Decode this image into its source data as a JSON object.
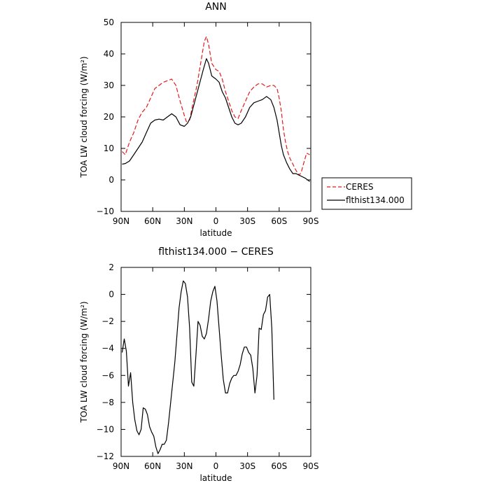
{
  "chart_data": [
    {
      "type": "line",
      "title": "ANN",
      "xlabel": "latitude",
      "ylabel": "TOA LW cloud forcing (W/m²)",
      "xlim": [
        -90,
        90
      ],
      "ylim": [
        -10,
        50
      ],
      "x_ticks": [
        -90,
        -60,
        -30,
        0,
        30,
        60,
        90
      ],
      "x_tick_labels": [
        "90N",
        "60N",
        "30N",
        "0",
        "30S",
        "60S",
        "90S"
      ],
      "y_ticks": [
        -10,
        0,
        10,
        20,
        30,
        40,
        50
      ],
      "y_tick_labels": [
        "−10",
        "0",
        "10",
        "20",
        "30",
        "40",
        "50"
      ],
      "grid": false,
      "legend_position": "right",
      "series": [
        {
          "name": "CERES",
          "color": "#e41a1c",
          "dash": "dashed",
          "points": [
            [
              -89,
              9
            ],
            [
              -86,
              8
            ],
            [
              -82,
              12
            ],
            [
              -78,
              15
            ],
            [
              -74,
              19
            ],
            [
              -70,
              21.5
            ],
            [
              -66,
              23
            ],
            [
              -62,
              26
            ],
            [
              -58,
              29
            ],
            [
              -54,
              30
            ],
            [
              -50,
              31
            ],
            [
              -46,
              31.5
            ],
            [
              -42,
              32
            ],
            [
              -38,
              30
            ],
            [
              -34,
              25
            ],
            [
              -30,
              20.5
            ],
            [
              -28,
              18.5
            ],
            [
              -25,
              19
            ],
            [
              -22,
              24
            ],
            [
              -18,
              30
            ],
            [
              -14,
              38
            ],
            [
              -11,
              44
            ],
            [
              -9,
              45.5
            ],
            [
              -7,
              43
            ],
            [
              -4,
              37
            ],
            [
              0,
              35
            ],
            [
              3,
              34.5
            ],
            [
              6,
              32
            ],
            [
              9,
              28
            ],
            [
              12,
              25
            ],
            [
              15,
              22
            ],
            [
              18,
              20
            ],
            [
              21,
              19.5
            ],
            [
              24,
              22
            ],
            [
              28,
              25
            ],
            [
              32,
              28
            ],
            [
              36,
              29.5
            ],
            [
              40,
              30.5
            ],
            [
              44,
              30.5
            ],
            [
              48,
              29.5
            ],
            [
              52,
              30
            ],
            [
              55,
              30
            ],
            [
              58,
              29
            ],
            [
              60,
              26
            ],
            [
              62,
              22
            ],
            [
              64,
              16
            ],
            [
              66,
              12
            ],
            [
              68,
              9
            ],
            [
              70,
              7
            ],
            [
              73,
              5
            ],
            [
              76,
              3
            ],
            [
              79,
              1.5
            ],
            [
              81,
              2.5
            ],
            [
              83,
              5
            ],
            [
              86,
              8.5
            ],
            [
              89,
              8
            ]
          ]
        },
        {
          "name": "flthist134.000",
          "color": "#000000",
          "dash": "solid",
          "points": [
            [
              -89,
              5
            ],
            [
              -86,
              5.2
            ],
            [
              -82,
              6
            ],
            [
              -78,
              8
            ],
            [
              -74,
              10
            ],
            [
              -70,
              12
            ],
            [
              -66,
              15
            ],
            [
              -62,
              18
            ],
            [
              -58,
              19
            ],
            [
              -54,
              19.3
            ],
            [
              -50,
              19
            ],
            [
              -46,
              20
            ],
            [
              -42,
              21
            ],
            [
              -38,
              20
            ],
            [
              -34,
              17.5
            ],
            [
              -30,
              17
            ],
            [
              -27,
              18
            ],
            [
              -24,
              20
            ],
            [
              -20,
              25
            ],
            [
              -16,
              30
            ],
            [
              -12,
              35
            ],
            [
              -9,
              38.5
            ],
            [
              -7,
              37
            ],
            [
              -4,
              33
            ],
            [
              0,
              32
            ],
            [
              3,
              31
            ],
            [
              6,
              28
            ],
            [
              9,
              26
            ],
            [
              12,
              23
            ],
            [
              15,
              20
            ],
            [
              18,
              18
            ],
            [
              21,
              17.5
            ],
            [
              24,
              18
            ],
            [
              28,
              20
            ],
            [
              32,
              23
            ],
            [
              36,
              24.5
            ],
            [
              40,
              25
            ],
            [
              44,
              25.5
            ],
            [
              48,
              26.5
            ],
            [
              52,
              25.5
            ],
            [
              55,
              23
            ],
            [
              58,
              19
            ],
            [
              60,
              15
            ],
            [
              62,
              11
            ],
            [
              64,
              8
            ],
            [
              67,
              5.5
            ],
            [
              70,
              3.5
            ],
            [
              73,
              2
            ],
            [
              76,
              2
            ],
            [
              79,
              1.5
            ],
            [
              82,
              1
            ],
            [
              85,
              0.5
            ],
            [
              89,
              -0.5
            ]
          ]
        }
      ]
    },
    {
      "type": "line",
      "title": "flthist134.000 − CERES",
      "xlabel": "latitude",
      "ylabel": "TOA LW cloud forcing (W/m²)",
      "xlim": [
        -90,
        90
      ],
      "ylim": [
        -12,
        2
      ],
      "x_ticks": [
        -90,
        -60,
        -30,
        0,
        30,
        60,
        90
      ],
      "x_tick_labels": [
        "90N",
        "60N",
        "30N",
        "0",
        "30S",
        "60S",
        "90S"
      ],
      "y_ticks": [
        -12,
        -10,
        -8,
        -6,
        -4,
        -2,
        0,
        2
      ],
      "y_tick_labels": [
        "−12",
        "−10",
        "−8",
        "−6",
        "−4",
        "−2",
        "0",
        "2"
      ],
      "grid": false,
      "series": [
        {
          "color": "#000000",
          "dash": "solid",
          "points": [
            [
              -89,
              -4.3
            ],
            [
              -87,
              -3.3
            ],
            [
              -85,
              -4.2
            ],
            [
              -83,
              -6.8
            ],
            [
              -81,
              -5.8
            ],
            [
              -79,
              -8
            ],
            [
              -77,
              -9.3
            ],
            [
              -75,
              -10.1
            ],
            [
              -73,
              -10.4
            ],
            [
              -71,
              -10
            ],
            [
              -69,
              -8.4
            ],
            [
              -67,
              -8.5
            ],
            [
              -65,
              -8.9
            ],
            [
              -63,
              -9.8
            ],
            [
              -61,
              -10.2
            ],
            [
              -59,
              -10.5
            ],
            [
              -57,
              -11.3
            ],
            [
              -55,
              -11.8
            ],
            [
              -53,
              -11.5
            ],
            [
              -51,
              -11.1
            ],
            [
              -49,
              -11.1
            ],
            [
              -47,
              -10.8
            ],
            [
              -45,
              -9.5
            ],
            [
              -43,
              -8
            ],
            [
              -41,
              -6.5
            ],
            [
              -39,
              -5
            ],
            [
              -37,
              -3
            ],
            [
              -35,
              -1
            ],
            [
              -33,
              0.2
            ],
            [
              -31,
              1
            ],
            [
              -29,
              0.8
            ],
            [
              -27,
              -0.2
            ],
            [
              -25,
              -2.5
            ],
            [
              -23,
              -6.5
            ],
            [
              -21,
              -6.8
            ],
            [
              -19,
              -4.5
            ],
            [
              -17,
              -2
            ],
            [
              -15,
              -2.3
            ],
            [
              -13,
              -3.1
            ],
            [
              -11,
              -3.3
            ],
            [
              -9,
              -2.9
            ],
            [
              -7,
              -1.8
            ],
            [
              -5,
              -0.5
            ],
            [
              -3,
              0.2
            ],
            [
              -1,
              0.6
            ],
            [
              1,
              -0.5
            ],
            [
              3,
              -2.5
            ],
            [
              5,
              -4.5
            ],
            [
              7,
              -6.3
            ],
            [
              9,
              -7.3
            ],
            [
              11,
              -7.3
            ],
            [
              13,
              -6.6
            ],
            [
              15,
              -6.2
            ],
            [
              17,
              -6
            ],
            [
              19,
              -6
            ],
            [
              21,
              -5.7
            ],
            [
              23,
              -5.2
            ],
            [
              25,
              -4.4
            ],
            [
              27,
              -3.9
            ],
            [
              29,
              -3.9
            ],
            [
              31,
              -4.3
            ],
            [
              33,
              -4.5
            ],
            [
              35,
              -5.5
            ],
            [
              37,
              -7.3
            ],
            [
              39,
              -6
            ],
            [
              41,
              -2.5
            ],
            [
              43,
              -2.6
            ],
            [
              45,
              -1.5
            ],
            [
              47,
              -1.2
            ],
            [
              49,
              -0.2
            ],
            [
              51,
              0
            ],
            [
              53,
              -2.5
            ],
            [
              55,
              -7.8
            ]
          ]
        }
      ]
    }
  ]
}
